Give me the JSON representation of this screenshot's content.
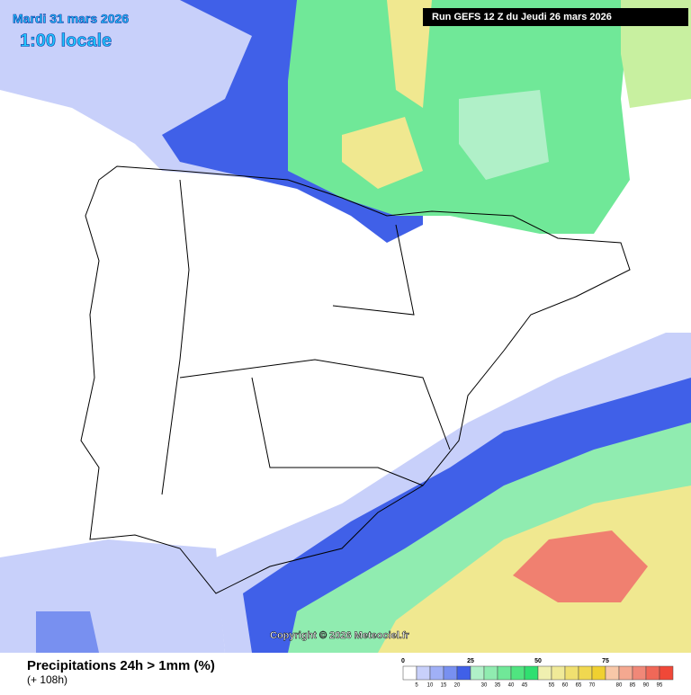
{
  "header": {
    "date": "Mardi 31 mars 2026",
    "time": "1:00 locale",
    "run": "Run GEFS 12 Z du Jeudi 26 mars 2026"
  },
  "footer": {
    "title": "Precipitations 24h > 1mm (%)",
    "lead": "(+ 108h)",
    "copyright": "Copyright © 2026 Meteociel.fr"
  },
  "legend": {
    "major_ticks": [
      0,
      25,
      50,
      75
    ],
    "minor_ticks": [
      5,
      10,
      15,
      20,
      30,
      35,
      40,
      45,
      55,
      60,
      65,
      70,
      80,
      85,
      90,
      95
    ],
    "colors": [
      "#ffffff",
      "#c8d0fa",
      "#a0b0f6",
      "#7890f0",
      "#4060e8",
      "#b0f0c8",
      "#90ecb0",
      "#70e898",
      "#50e480",
      "#30e070",
      "#f0f0b0",
      "#f0ea98",
      "#f0e070",
      "#f0d850",
      "#f0d030",
      "#f8c8a8",
      "#f4a890",
      "#f08878",
      "#f06858",
      "#f04838"
    ]
  }
}
